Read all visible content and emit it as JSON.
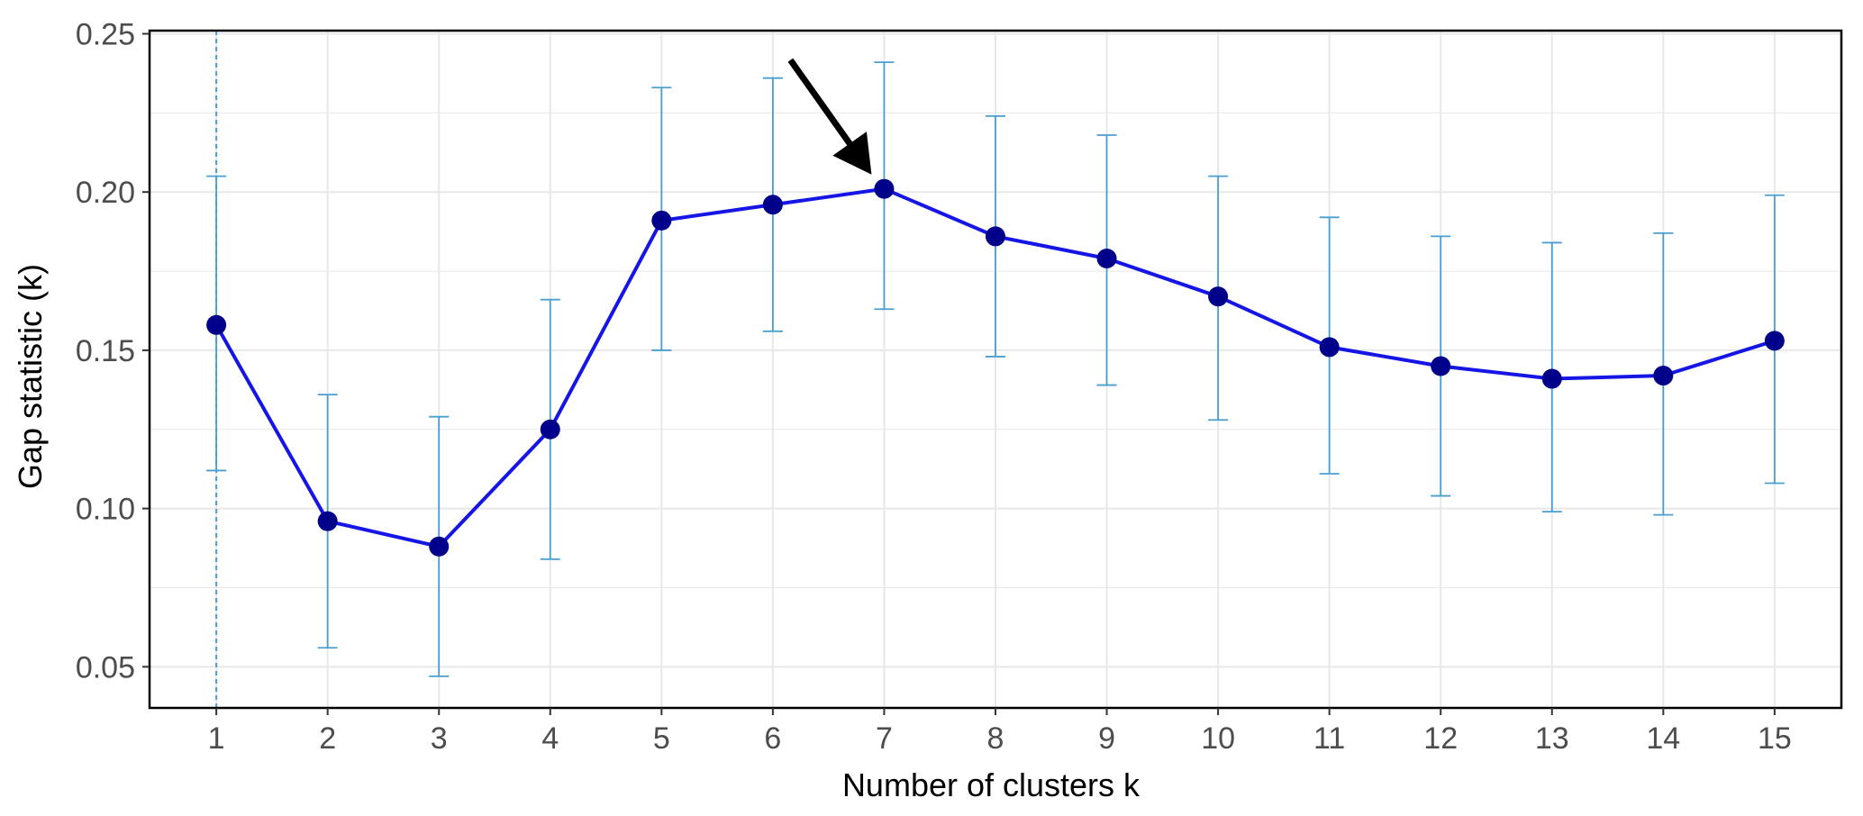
{
  "chart_data": {
    "type": "line",
    "title": "",
    "xlabel": "Number of clusters k",
    "ylabel": "Gap statistic (k)",
    "x": [
      1,
      2,
      3,
      4,
      5,
      6,
      7,
      8,
      9,
      10,
      11,
      12,
      13,
      14,
      15
    ],
    "x_tick_labels": [
      "1",
      "2",
      "3",
      "4",
      "5",
      "6",
      "7",
      "8",
      "9",
      "10",
      "11",
      "12",
      "13",
      "14",
      "15"
    ],
    "y_tick_values": [
      0.05,
      0.1,
      0.15,
      0.2,
      0.25
    ],
    "y_tick_labels": [
      "0.05",
      "0.10",
      "0.15",
      "0.20",
      "0.25"
    ],
    "xlim": [
      0.4,
      15.6
    ],
    "ylim": [
      0.037,
      0.251
    ],
    "grid": true,
    "series": [
      {
        "values": [
          0.158,
          0.096,
          0.088,
          0.125,
          0.191,
          0.196,
          0.201,
          0.186,
          0.179,
          0.167,
          0.151,
          0.145,
          0.141,
          0.142,
          0.153
        ],
        "error_lower": [
          0.112,
          0.056,
          0.047,
          0.084,
          0.15,
          0.156,
          0.163,
          0.148,
          0.139,
          0.128,
          0.111,
          0.104,
          0.099,
          0.098,
          0.108
        ],
        "error_upper": [
          0.205,
          0.136,
          0.129,
          0.166,
          0.233,
          0.236,
          0.241,
          0.224,
          0.218,
          0.205,
          0.192,
          0.186,
          0.184,
          0.187,
          0.199
        ]
      }
    ],
    "optimal_k": 1,
    "highlighted_k": 7,
    "colors": {
      "line": "#1515e6",
      "point": "#00008b",
      "error_bar": "#4a9fcf",
      "reference_line": "#4a9fcf",
      "grid": "#e8e8e8",
      "arrow": "#000000"
    }
  }
}
